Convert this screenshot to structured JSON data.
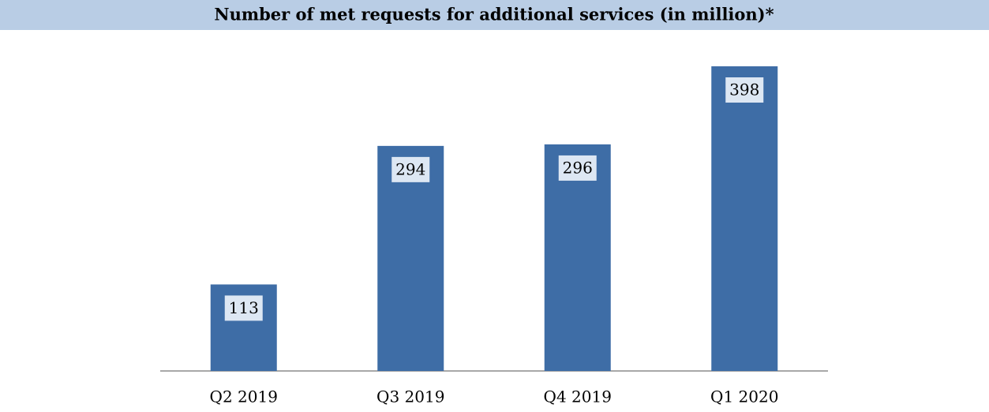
{
  "chart_data": {
    "type": "bar",
    "title": "Number of met requests for additional services (in million)*",
    "categories": [
      "Q2 2019",
      "Q3 2019",
      "Q4 2019",
      "Q1 2020"
    ],
    "values": [
      113,
      294,
      296,
      398
    ],
    "color": "#3e6da6"
  }
}
